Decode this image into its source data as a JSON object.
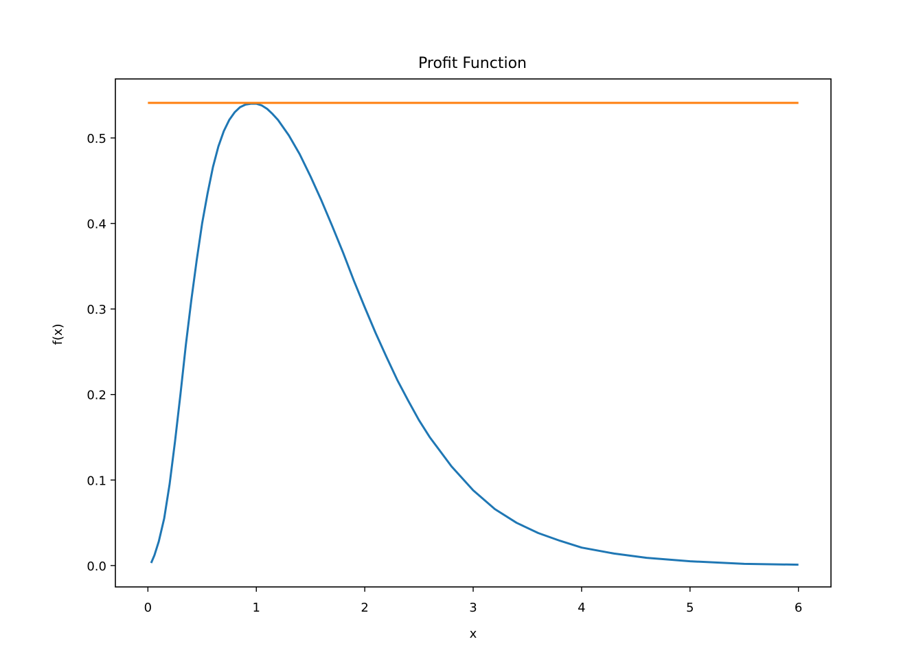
{
  "chart_data": {
    "type": "line",
    "title": "Profit Function",
    "xlabel": "x",
    "ylabel": "f(x)",
    "xlim": [
      -0.3,
      6.3
    ],
    "ylim": [
      -0.025,
      0.569
    ],
    "xticks": [
      0,
      1,
      2,
      3,
      4,
      5,
      6
    ],
    "xtick_labels": [
      "0",
      "1",
      "2",
      "3",
      "4",
      "5",
      "6"
    ],
    "yticks": [
      0.0,
      0.1,
      0.2,
      0.3,
      0.4,
      0.5
    ],
    "ytick_labels": [
      "0.0",
      "0.1",
      "0.2",
      "0.3",
      "0.4",
      "0.5"
    ],
    "grid": false,
    "series": [
      {
        "color": "#1f77b4",
        "x": [
          0.03,
          0.06,
          0.1,
          0.15,
          0.2,
          0.25,
          0.3,
          0.35,
          0.4,
          0.45,
          0.5,
          0.55,
          0.6,
          0.65,
          0.7,
          0.75,
          0.8,
          0.85,
          0.9,
          0.95,
          1.0,
          1.05,
          1.1,
          1.15,
          1.2,
          1.3,
          1.4,
          1.5,
          1.6,
          1.7,
          1.8,
          1.9,
          2.0,
          2.1,
          2.2,
          2.3,
          2.4,
          2.5,
          2.6,
          2.8,
          3.0,
          3.2,
          3.4,
          3.6,
          3.8,
          4.0,
          4.3,
          4.6,
          5.0,
          5.5,
          6.0
        ],
        "y": [
          0.003,
          0.012,
          0.028,
          0.055,
          0.095,
          0.145,
          0.2,
          0.258,
          0.31,
          0.357,
          0.4,
          0.435,
          0.466,
          0.49,
          0.508,
          0.521,
          0.53,
          0.536,
          0.539,
          0.54,
          0.54,
          0.538,
          0.534,
          0.528,
          0.521,
          0.503,
          0.481,
          0.455,
          0.427,
          0.397,
          0.366,
          0.333,
          0.302,
          0.272,
          0.244,
          0.217,
          0.193,
          0.17,
          0.15,
          0.116,
          0.088,
          0.066,
          0.05,
          0.038,
          0.029,
          0.021,
          0.014,
          0.009,
          0.005,
          0.002,
          0.001
        ]
      },
      {
        "color": "#ff7f0e",
        "x": [
          0,
          6
        ],
        "y": [
          0.541,
          0.541
        ]
      }
    ]
  }
}
